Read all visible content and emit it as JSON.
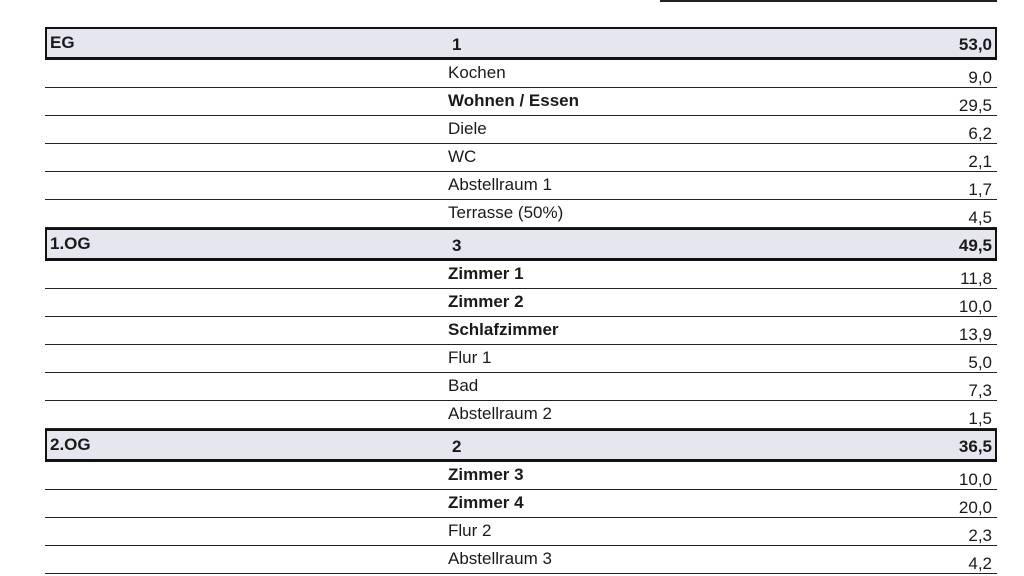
{
  "sections": [
    {
      "floor": "EG",
      "count": "1",
      "total": "53,0",
      "rooms": [
        {
          "name": "Kochen",
          "area": "9,0",
          "bold": false
        },
        {
          "name": "Wohnen / Essen",
          "area": "29,5",
          "bold": true
        },
        {
          "name": "Diele",
          "area": "6,2",
          "bold": false
        },
        {
          "name": "WC",
          "area": "2,1",
          "bold": false
        },
        {
          "name": "Abstellraum 1",
          "area": "1,7",
          "bold": false
        },
        {
          "name": "Terrasse (50%)",
          "area": "4,5",
          "bold": false
        }
      ]
    },
    {
      "floor": "1.OG",
      "count": "3",
      "total": "49,5",
      "rooms": [
        {
          "name": "Zimmer 1",
          "area": "11,8",
          "bold": true
        },
        {
          "name": "Zimmer 2",
          "area": "10,0",
          "bold": true
        },
        {
          "name": "Schlafzimmer",
          "area": "13,9",
          "bold": true
        },
        {
          "name": "Flur 1",
          "area": "5,0",
          "bold": false
        },
        {
          "name": "Bad",
          "area": "7,3",
          "bold": false
        },
        {
          "name": "Abstellraum 2",
          "area": "1,5",
          "bold": false
        }
      ]
    },
    {
      "floor": "2.OG",
      "count": "2",
      "total": "36,5",
      "rooms": [
        {
          "name": "Zimmer 3",
          "area": "10,0",
          "bold": true
        },
        {
          "name": "Zimmer 4",
          "area": "20,0",
          "bold": true
        },
        {
          "name": "Flur 2",
          "area": "2,3",
          "bold": false
        },
        {
          "name": "Abstellraum 3",
          "area": "4,2",
          "bold": false
        }
      ]
    }
  ]
}
